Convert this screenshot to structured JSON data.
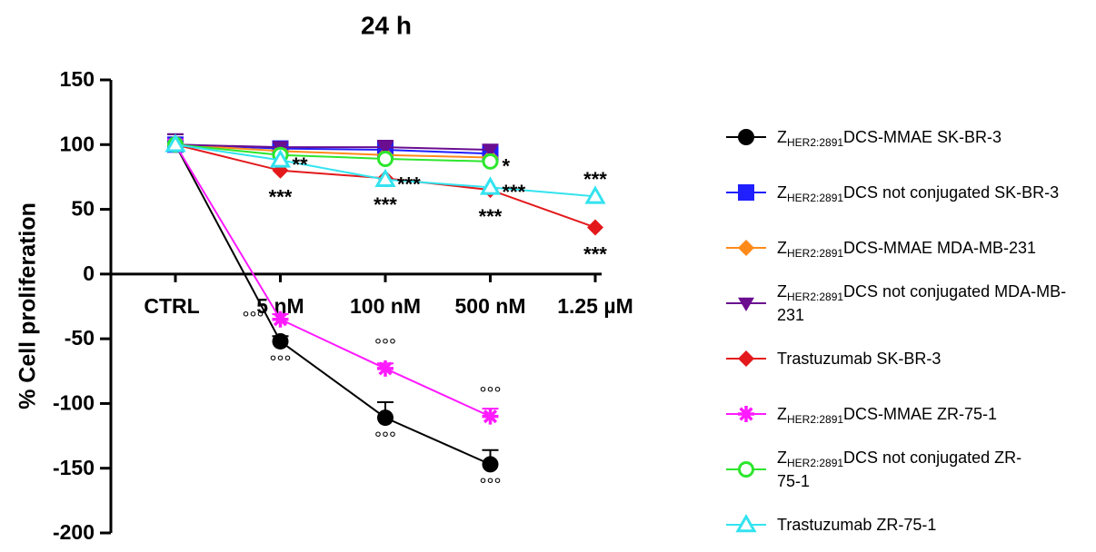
{
  "chart_data": {
    "type": "line",
    "title": "24 h",
    "y_label": "% Cell proliferation",
    "categories": [
      "CTRL",
      "5 nM",
      "100 nM",
      "500 nM",
      "1.25 µM"
    ],
    "ylim": [
      -200,
      150
    ],
    "yticks": [
      -200,
      -150,
      -100,
      -50,
      0,
      50,
      100,
      150
    ],
    "series": [
      {
        "name": [
          "Z",
          "HER2:2891",
          "DCS-MMAE SK-BR-3"
        ],
        "color": "#000000",
        "marker": "circle",
        "values": [
          100,
          -52,
          -111,
          -147,
          null
        ],
        "errors": [
          8,
          4,
          12,
          11,
          null
        ]
      },
      {
        "name": [
          "Z",
          "HER2:2891",
          "DCS not conjugated SK-BR-3"
        ],
        "color": "#1f1fff",
        "marker": "square",
        "values": [
          100,
          97,
          96,
          93,
          null
        ]
      },
      {
        "name": [
          "Z",
          "HER2:2891",
          "DCS-MMAE MDA-MB-231"
        ],
        "color": "#ff8a1a",
        "marker": "diamond",
        "values": [
          100,
          95,
          92,
          90,
          null
        ]
      },
      {
        "name": [
          "Z",
          "HER2:2891",
          "DCS not conjugated MDA-MB-231"
        ],
        "color": "#6a0d8f",
        "marker": "triangle-down",
        "values": [
          100,
          98,
          98,
          96,
          null
        ],
        "errors": [
          8,
          4,
          5,
          4,
          null
        ]
      },
      {
        "name": "Trastuzumab SK-BR-3",
        "color": "#e3191c",
        "marker": "diamond",
        "values": [
          100,
          80,
          74,
          65,
          36
        ]
      },
      {
        "name": [
          "Z",
          "HER2:2891",
          "DCS-MMAE ZR-75-1"
        ],
        "color": "#ff1aff",
        "marker": "asterisk",
        "values": [
          100,
          -35,
          -73,
          -110,
          null
        ],
        "errors": [
          4,
          4,
          4,
          6,
          null
        ]
      },
      {
        "name": [
          "Z",
          "HER2:2891",
          "DCS not conjugated ZR-75-1"
        ],
        "color": "#2de62d",
        "marker": "circle-open",
        "values": [
          100,
          92,
          89,
          87,
          null
        ]
      },
      {
        "name": "Trastuzumab ZR-75-1",
        "color": "#33e3ef",
        "marker": "triangle-open",
        "values": [
          100,
          88,
          73,
          67,
          60
        ]
      }
    ],
    "annotations": [
      {
        "text": "**",
        "series": 7,
        "point": 1,
        "side": "right"
      },
      {
        "text": "***",
        "series": 4,
        "point": 1,
        "side": "below"
      },
      {
        "text": "***",
        "series": 7,
        "point": 2,
        "side": "right"
      },
      {
        "text": "***",
        "series": 4,
        "point": 2,
        "side": "below"
      },
      {
        "text": "*",
        "series": 6,
        "point": 3,
        "side": "right"
      },
      {
        "text": "***",
        "series": 7,
        "point": 3,
        "side": "right"
      },
      {
        "text": "***",
        "series": 4,
        "point": 3,
        "side": "below"
      },
      {
        "text": "***",
        "series": 7,
        "point": 4,
        "side": "above"
      },
      {
        "text": "***",
        "series": 4,
        "point": 4,
        "side": "below"
      },
      {
        "text": "°°°",
        "series": 5,
        "point": 1,
        "side": "left"
      },
      {
        "text": "°°°",
        "series": 0,
        "point": 1,
        "side": "below"
      },
      {
        "text": "°°°",
        "series": 5,
        "point": 2,
        "side": "above"
      },
      {
        "text": "°°°",
        "series": 0,
        "point": 2,
        "side": "below"
      },
      {
        "text": "°°°",
        "series": 5,
        "point": 3,
        "side": "above"
      },
      {
        "text": "°°°",
        "series": 0,
        "point": 3,
        "side": "below"
      }
    ]
  }
}
